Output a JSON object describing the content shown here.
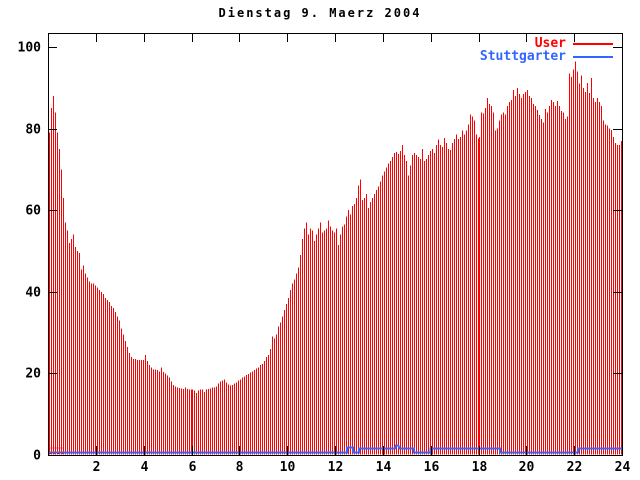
{
  "window": {
    "kind": "gnuplot-style plot image",
    "background": "#ffffff"
  },
  "chart_data": {
    "type": "bar",
    "title": "Dienstag 9. Maerz 2004",
    "xlabel": "",
    "ylabel": "",
    "xlim": [
      0,
      24
    ],
    "ylim": [
      0,
      100
    ],
    "xticks": [
      2,
      4,
      6,
      8,
      10,
      12,
      14,
      16,
      18,
      20,
      22,
      24
    ],
    "yticks": [
      0,
      20,
      40,
      60,
      80,
      100
    ],
    "grid": false,
    "legend_position": "top-right-inside",
    "x_unit": "hour_of_day",
    "sample_interval_minutes": 5,
    "axis_color": "#000000",
    "series": [
      {
        "name": "User",
        "color": "#ff0000",
        "style": "impulses",
        "values": [
          79,
          85,
          88,
          84,
          79,
          75,
          70,
          63,
          57,
          55,
          52,
          53,
          54,
          51,
          50,
          49.5,
          45.5,
          46.5,
          44.5,
          43.5,
          42.5,
          42,
          42,
          41.5,
          41,
          40.5,
          40,
          39.5,
          38.5,
          38,
          37.5,
          36.5,
          36,
          35,
          34,
          33,
          31,
          29.5,
          28,
          26.5,
          25,
          24,
          23.5,
          23.5,
          23.3,
          23.3,
          23.3,
          23.3,
          24.5,
          23,
          22,
          21.5,
          21,
          21,
          20.8,
          20.5,
          21.5,
          20.3,
          20,
          19.5,
          19,
          18,
          17.2,
          16.8,
          16.6,
          16.4,
          16.3,
          16.2,
          16.5,
          16.2,
          16,
          16,
          16,
          15.8,
          15.2,
          15.8,
          16,
          16,
          15.5,
          16,
          16.2,
          16.3,
          16.5,
          16.6,
          16.8,
          17.5,
          18,
          18.3,
          18.5,
          17.8,
          17.3,
          17,
          17.2,
          17.5,
          17.8,
          18.2,
          18.5,
          19,
          19.3,
          19.6,
          19.9,
          20.2,
          20.5,
          20.8,
          21.2,
          21.5,
          22,
          22.3,
          23,
          24,
          24.5,
          26,
          29,
          28.5,
          29.5,
          31.5,
          32.5,
          34,
          35.5,
          37,
          38.5,
          40.5,
          42,
          43,
          44.5,
          46,
          49,
          53,
          55.5,
          57,
          54,
          55.5,
          55,
          52.5,
          54,
          55.5,
          57,
          54.5,
          55,
          55.5,
          57.5,
          56,
          55,
          54.5,
          55.5,
          51.5,
          54,
          56,
          56.5,
          58.5,
          60,
          59,
          61,
          61.5,
          63,
          66,
          67.5,
          62.5,
          63,
          64,
          60.5,
          62,
          63,
          64,
          65,
          65.8,
          67,
          68.5,
          69.5,
          70.5,
          71.5,
          72,
          73,
          74,
          74.3,
          73.8,
          74.5,
          76,
          73.5,
          72,
          68.5,
          71,
          73.5,
          74,
          73.5,
          73,
          72.5,
          75,
          72,
          72.5,
          73.5,
          74.5,
          75,
          74,
          76,
          77.3,
          76,
          75.5,
          77.7,
          76.5,
          75,
          74.8,
          76.5,
          77.5,
          78.5,
          77.5,
          78,
          79.5,
          78.5,
          79.5,
          81,
          83.5,
          83,
          82,
          78.5,
          77.6,
          78,
          84,
          83.7,
          85,
          87.5,
          86,
          85.5,
          84,
          79.5,
          80,
          82,
          83.5,
          84,
          83.5,
          85.5,
          86.5,
          87,
          89.5,
          88,
          90,
          88.5,
          87.5,
          88.5,
          89,
          89.5,
          88,
          87.5,
          86,
          85.5,
          84.5,
          83.3,
          82.4,
          81.5,
          84.8,
          84,
          85.5,
          87,
          86.5,
          85.5,
          86.8,
          85.5,
          84.3,
          83.9,
          82.3,
          83,
          93.5,
          92.7,
          94.5,
          96.5,
          94,
          91,
          93,
          90,
          89,
          91.2,
          88.7,
          92.4,
          87.5,
          86.5,
          87.5,
          86.5,
          85.5,
          82,
          81,
          80.8,
          80,
          79.6,
          78,
          76.5,
          76,
          76,
          77
        ]
      },
      {
        "name": "Stuttgarter",
        "color": "#3366ff",
        "style": "line",
        "points": [
          [
            0,
            0.7
          ],
          [
            12.5,
            0.7
          ],
          [
            12.5,
            1.9
          ],
          [
            12.75,
            1.9
          ],
          [
            12.75,
            0.7
          ],
          [
            13.0,
            0.7
          ],
          [
            13.0,
            1.6
          ],
          [
            14.5,
            1.6
          ],
          [
            14.55,
            2.4
          ],
          [
            14.65,
            2.4
          ],
          [
            14.7,
            1.6
          ],
          [
            15.3,
            1.6
          ],
          [
            15.3,
            0.7
          ],
          [
            16.0,
            0.7
          ],
          [
            16.0,
            1.6
          ],
          [
            18.9,
            1.6
          ],
          [
            18.9,
            0.7
          ],
          [
            22.15,
            0.7
          ],
          [
            22.15,
            1.6
          ],
          [
            24,
            1.6
          ]
        ]
      }
    ],
    "annotations": {
      "baseline_dash_box": {
        "comment": "short red dashed box over the blue line at lower-left",
        "from_hour": 0,
        "to_hour": 0.62,
        "value_low": 0.5,
        "value_high": 1.8,
        "color": "#ff0000"
      }
    }
  }
}
